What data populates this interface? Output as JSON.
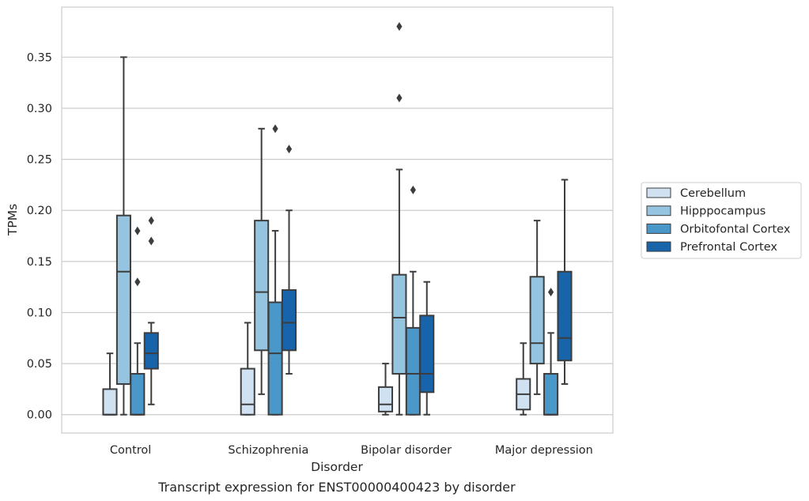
{
  "caption": "Transcript expression for ENST00000400423 by disorder",
  "chart_data": {
    "type": "box",
    "xlabel": "Disorder",
    "ylabel": "TPMs",
    "ylim": [
      -0.018,
      0.399
    ],
    "yticks": [
      0.0,
      0.05,
      0.1,
      0.15,
      0.2,
      0.25,
      0.3,
      0.35
    ],
    "ytick_labels": [
      "0.00",
      "0.05",
      "0.10",
      "0.15",
      "0.20",
      "0.25",
      "0.30",
      "0.35"
    ],
    "grid": "horizontal",
    "legend_position": "right",
    "categories": [
      "Control",
      "Schizophrenia",
      "Bipolar disorder",
      "Major depression"
    ],
    "series": [
      {
        "name": "Cerebellum",
        "color": "#d0e1f2",
        "boxes": [
          {
            "whislo": 0.0,
            "q1": 0.0,
            "med": 0.0,
            "q3": 0.025,
            "whishi": 0.06,
            "fliers": []
          },
          {
            "whislo": 0.0,
            "q1": 0.0,
            "med": 0.01,
            "q3": 0.045,
            "whishi": 0.09,
            "fliers": []
          },
          {
            "whislo": 0.0,
            "q1": 0.003,
            "med": 0.01,
            "q3": 0.027,
            "whishi": 0.05,
            "fliers": []
          },
          {
            "whislo": 0.0,
            "q1": 0.005,
            "med": 0.02,
            "q3": 0.035,
            "whishi": 0.07,
            "fliers": []
          }
        ]
      },
      {
        "name": "Hipppocampus",
        "color": "#94c4df",
        "boxes": [
          {
            "whislo": 0.0,
            "q1": 0.03,
            "med": 0.14,
            "q3": 0.195,
            "whishi": 0.35,
            "fliers": []
          },
          {
            "whislo": 0.02,
            "q1": 0.063,
            "med": 0.12,
            "q3": 0.19,
            "whishi": 0.28,
            "fliers": []
          },
          {
            "whislo": 0.0,
            "q1": 0.04,
            "med": 0.095,
            "q3": 0.137,
            "whishi": 0.24,
            "fliers": [
              0.31,
              0.38
            ]
          },
          {
            "whislo": 0.02,
            "q1": 0.05,
            "med": 0.07,
            "q3": 0.135,
            "whishi": 0.19,
            "fliers": []
          }
        ]
      },
      {
        "name": "Orbitofontal Cortex",
        "color": "#4a98c9",
        "boxes": [
          {
            "whislo": 0.0,
            "q1": 0.0,
            "med": 0.0,
            "q3": 0.04,
            "whishi": 0.07,
            "fliers": [
              0.13,
              0.18
            ]
          },
          {
            "whislo": 0.0,
            "q1": 0.0,
            "med": 0.06,
            "q3": 0.11,
            "whishi": 0.18,
            "fliers": [
              0.28
            ]
          },
          {
            "whislo": 0.0,
            "q1": 0.0,
            "med": 0.04,
            "q3": 0.085,
            "whishi": 0.14,
            "fliers": [
              0.22
            ]
          },
          {
            "whislo": 0.0,
            "q1": 0.0,
            "med": 0.0,
            "q3": 0.04,
            "whishi": 0.08,
            "fliers": [
              0.12
            ]
          }
        ]
      },
      {
        "name": "Prefrontal Cortex",
        "color": "#1764ab",
        "boxes": [
          {
            "whislo": 0.01,
            "q1": 0.045,
            "med": 0.06,
            "q3": 0.08,
            "whishi": 0.09,
            "fliers": [
              0.17,
              0.19
            ]
          },
          {
            "whislo": 0.04,
            "q1": 0.063,
            "med": 0.09,
            "q3": 0.122,
            "whishi": 0.2,
            "fliers": [
              0.26
            ]
          },
          {
            "whislo": 0.0,
            "q1": 0.022,
            "med": 0.04,
            "q3": 0.097,
            "whishi": 0.13,
            "fliers": []
          },
          {
            "whislo": 0.03,
            "q1": 0.053,
            "med": 0.075,
            "q3": 0.14,
            "whishi": 0.23,
            "fliers": []
          }
        ]
      }
    ]
  }
}
